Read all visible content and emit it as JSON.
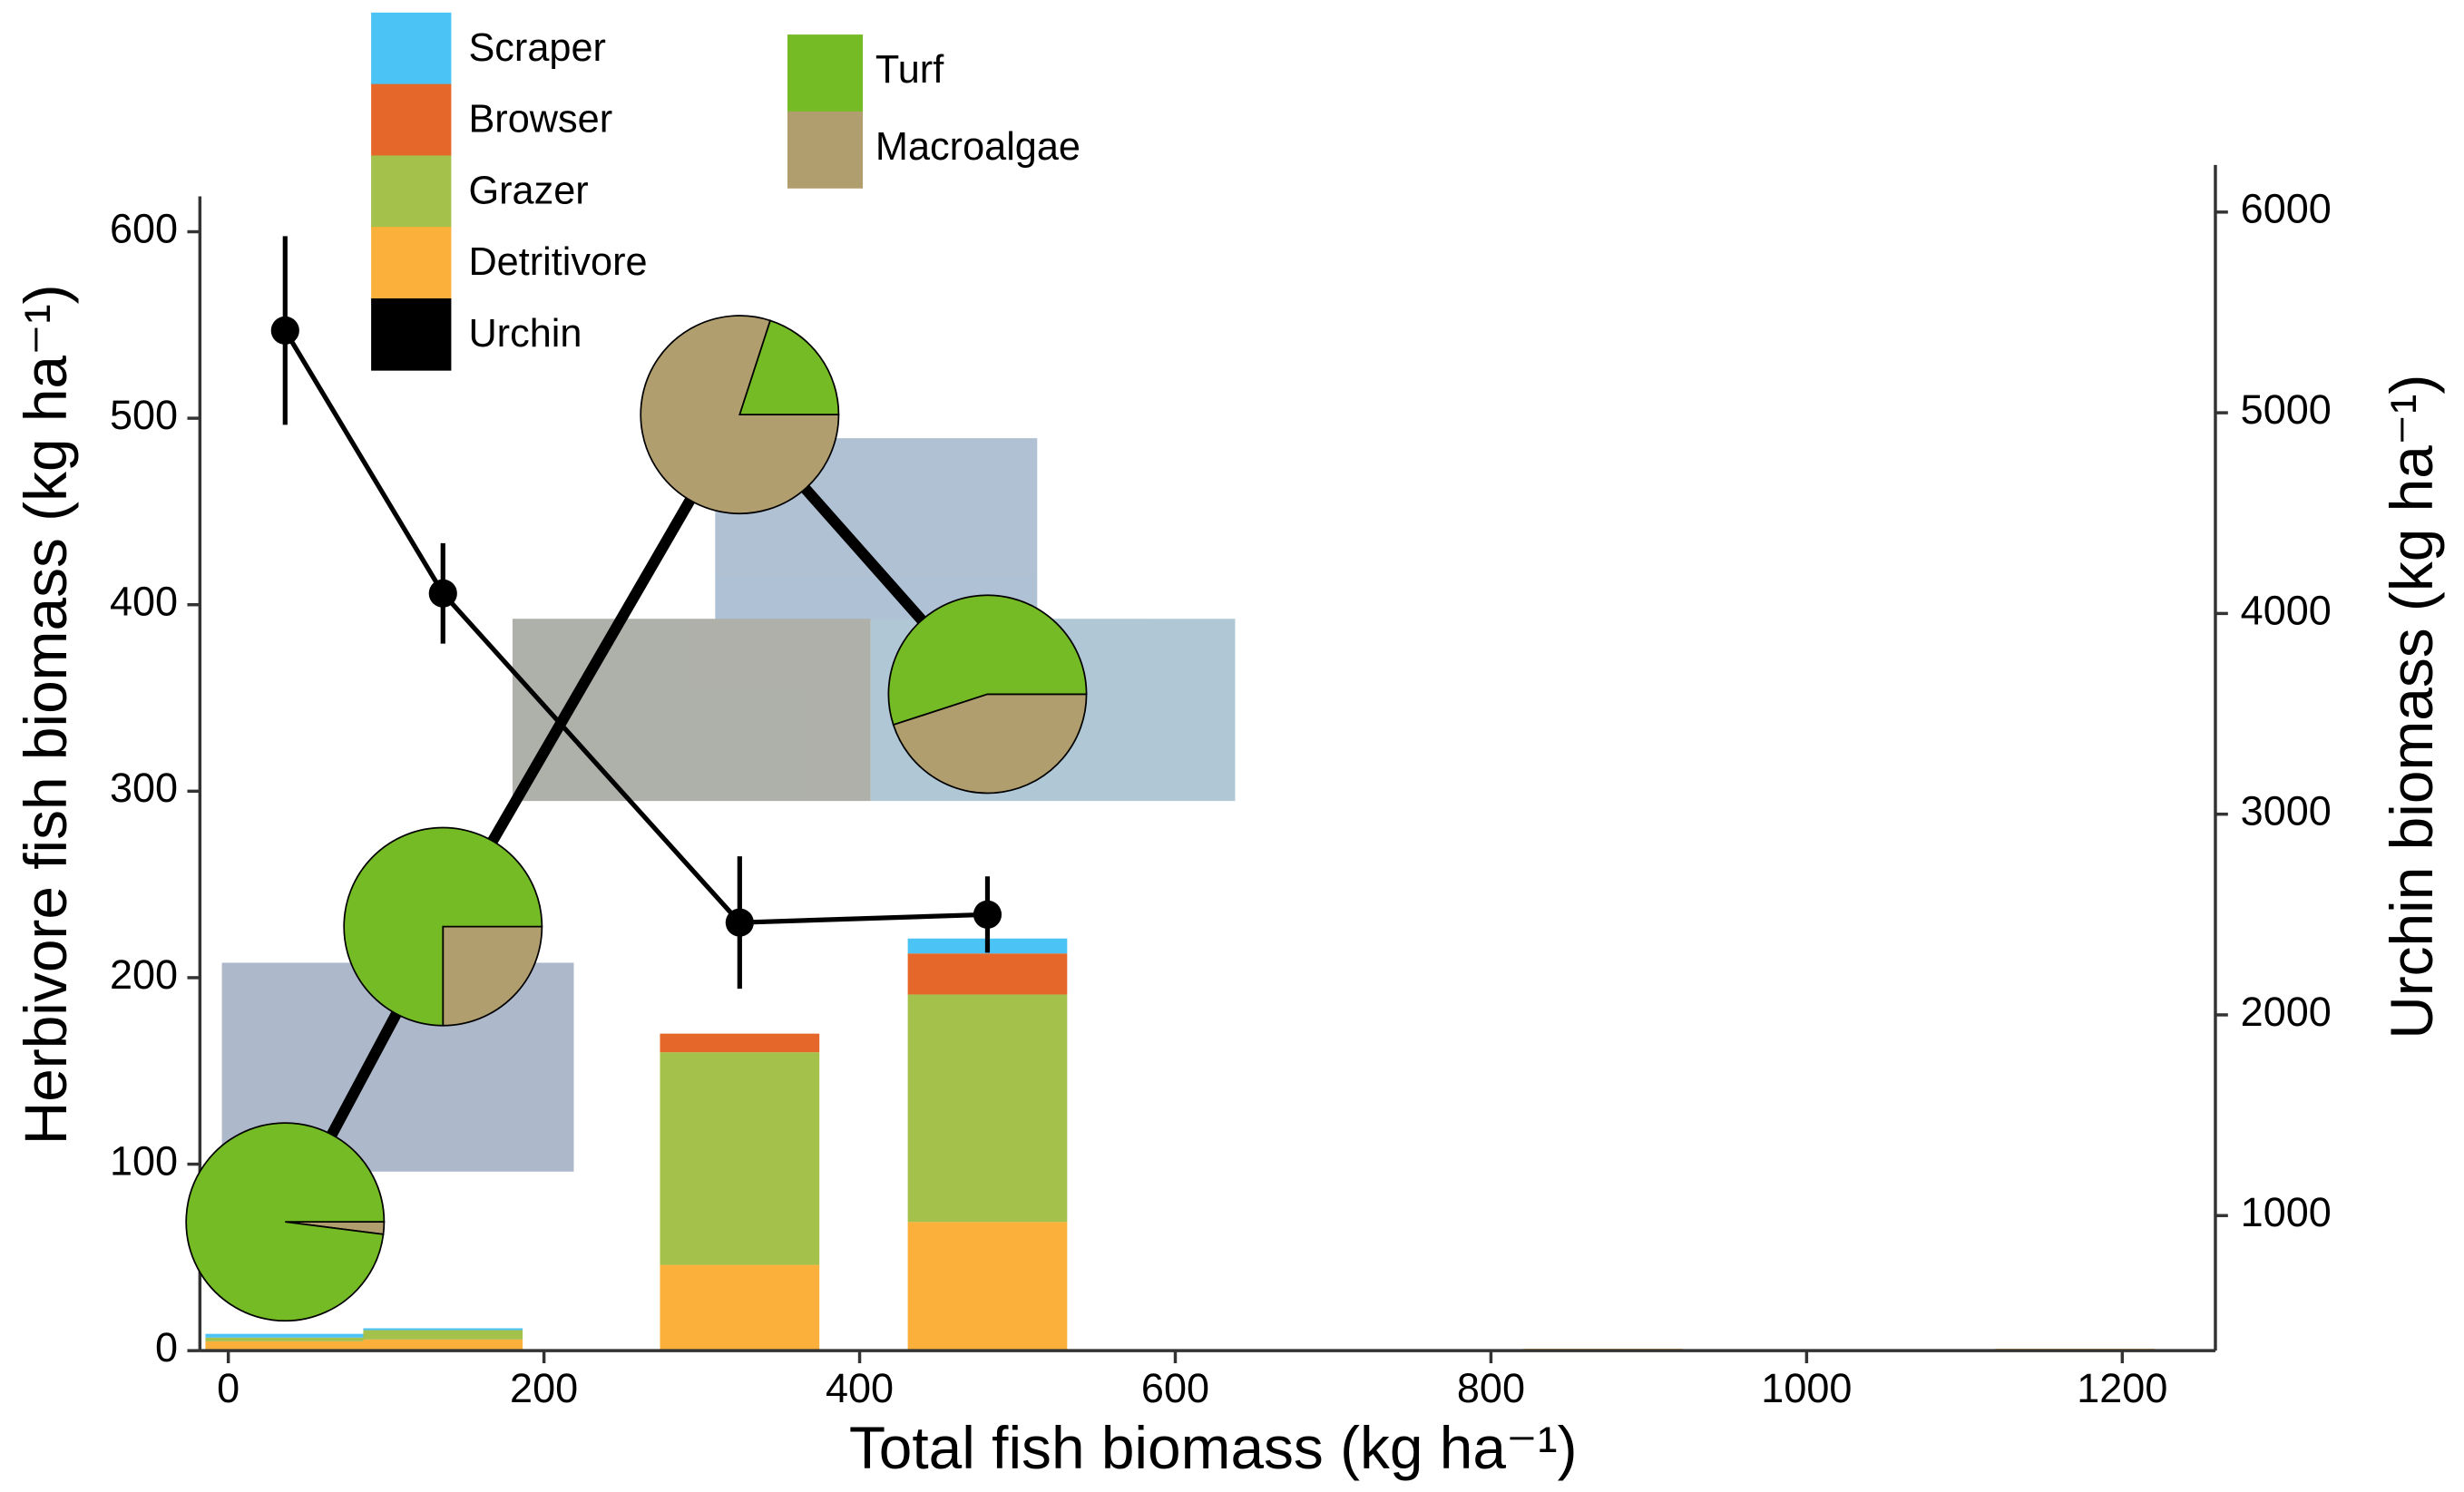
{
  "chart_data": {
    "type": "bar",
    "x_label": "Total fish biomass (kg ha⁻¹)",
    "y_label": "Herbivore fish biomass (kg ha⁻¹)",
    "y2_label": "Urchin biomass (kg ha⁻¹)",
    "x": [
      36,
      136,
      324,
      481,
      871,
      1170
    ],
    "xlim": [
      -18,
      1259
    ],
    "xticks": [
      0,
      200,
      400,
      600,
      800,
      1000,
      1200
    ],
    "ylim": [
      0,
      619
    ],
    "yticks": [
      0,
      100,
      200,
      300,
      400,
      500,
      600
    ],
    "y2lim": [
      327,
      6235
    ],
    "y2ticks": [
      1000,
      2000,
      3000,
      4000,
      5000,
      6000
    ],
    "series": [
      {
        "name": "Scraper",
        "color": "#4bc3f5",
        "values": [
          2,
          1,
          0,
          8,
          0,
          0
        ]
      },
      {
        "name": "Browser",
        "color": "#e5682a",
        "values": [
          0,
          0,
          10,
          22,
          0,
          0
        ]
      },
      {
        "name": "Grazer",
        "color": "#a4c14b",
        "values": [
          2,
          5,
          114,
          122,
          0,
          0
        ]
      },
      {
        "name": "Detritivore",
        "color": "#fbb03b",
        "values": [
          5,
          6,
          46,
          69,
          1,
          1
        ]
      },
      {
        "name": "Urchin",
        "color": "#000000",
        "axis": "y2",
        "type": "line",
        "values": [
          5410,
          4100,
          2460,
          2500,
          null,
          null
        ],
        "errors": [
          470,
          250,
          330,
          190,
          null,
          null
        ]
      }
    ],
    "pies": {
      "x": [
        36,
        136,
        324,
        481
      ],
      "series": [
        {
          "name": "Turf",
          "color": "#74bb25",
          "values": [
            98,
            75,
            20,
            55
          ]
        },
        {
          "name": "Macroalgae",
          "color": "#b19e6e",
          "values": [
            2,
            25,
            80,
            45
          ]
        }
      ]
    }
  }
}
